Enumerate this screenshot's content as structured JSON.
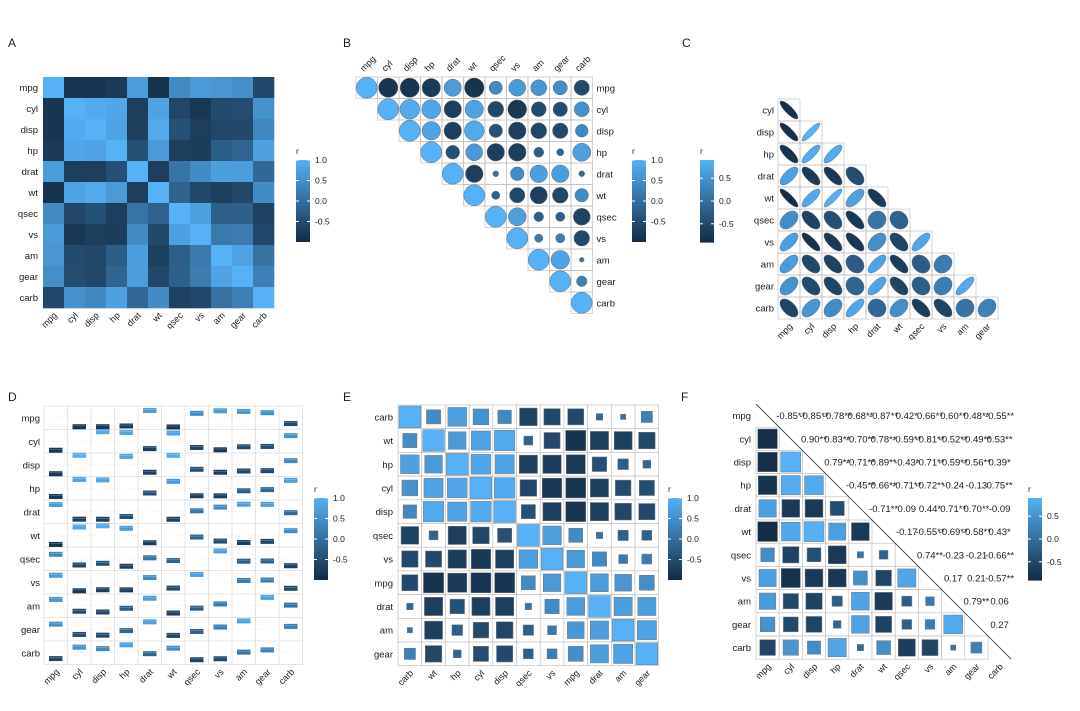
{
  "chart_data": {
    "type": "heatmap",
    "variables": [
      "mpg",
      "cyl",
      "disp",
      "hp",
      "drat",
      "wt",
      "qsec",
      "vs",
      "am",
      "gear",
      "carb"
    ],
    "matrix": [
      [
        1.0,
        -0.85,
        -0.85,
        -0.78,
        0.68,
        -0.87,
        0.42,
        0.66,
        0.6,
        0.48,
        -0.55
      ],
      [
        -0.85,
        1.0,
        0.9,
        0.83,
        -0.7,
        0.78,
        -0.59,
        -0.81,
        -0.52,
        -0.49,
        0.53
      ],
      [
        -0.85,
        0.9,
        1.0,
        0.79,
        -0.71,
        0.89,
        -0.43,
        -0.71,
        -0.59,
        -0.56,
        0.39
      ],
      [
        -0.78,
        0.83,
        0.79,
        1.0,
        -0.45,
        0.66,
        -0.71,
        -0.72,
        -0.24,
        -0.13,
        0.75
      ],
      [
        0.68,
        -0.7,
        -0.71,
        -0.45,
        1.0,
        -0.71,
        0.09,
        0.44,
        0.71,
        0.7,
        -0.09
      ],
      [
        -0.87,
        0.78,
        0.89,
        0.66,
        -0.71,
        1.0,
        -0.17,
        -0.55,
        -0.69,
        -0.58,
        0.43
      ],
      [
        0.42,
        -0.59,
        -0.43,
        -0.71,
        0.09,
        -0.17,
        1.0,
        0.74,
        -0.23,
        -0.21,
        -0.66
      ],
      [
        0.66,
        -0.81,
        -0.71,
        -0.72,
        0.44,
        -0.55,
        0.74,
        1.0,
        0.17,
        0.21,
        -0.57
      ],
      [
        0.6,
        -0.52,
        -0.59,
        -0.24,
        0.71,
        -0.69,
        -0.23,
        0.17,
        1.0,
        0.79,
        0.06
      ],
      [
        0.48,
        -0.49,
        -0.56,
        -0.13,
        0.7,
        -0.58,
        -0.21,
        0.21,
        0.79,
        1.0,
        0.27
      ],
      [
        -0.55,
        0.53,
        0.39,
        0.75,
        -0.09,
        0.43,
        -0.66,
        -0.57,
        0.06,
        0.27,
        1.0
      ]
    ],
    "hclust_order": [
      "carb",
      "wt",
      "hp",
      "cyl",
      "disp",
      "qsec",
      "vs",
      "mpg",
      "drat",
      "am",
      "gear"
    ],
    "legend_title": "r",
    "legend_ticks_full": [
      1.0,
      0.5,
      0.0,
      -0.5
    ],
    "legend_ticks_lower": [
      0.5,
      0.0,
      -0.5
    ],
    "colors": {
      "low": "#132b43",
      "high": "#56b1f7",
      "grid": "#cccccc",
      "outline": "#555555"
    },
    "panels": [
      {
        "label": "A",
        "method": "square-full"
      },
      {
        "label": "B",
        "method": "circle-upper"
      },
      {
        "label": "C",
        "method": "ellipse-lower"
      },
      {
        "label": "D",
        "method": "bars-full"
      },
      {
        "label": "E",
        "method": "square-size-hclust"
      },
      {
        "label": "F",
        "method": "mixed-numbers-squares"
      }
    ],
    "number_labels_F": {
      "mpg": [
        "-0.85**",
        "-0.85**",
        "-0.78**",
        "0.68**",
        "-0.87**",
        "0.42*",
        "0.66**",
        "0.60**",
        "0.48**",
        "-0.55**"
      ],
      "cyl": [
        "0.90**",
        "0.83**",
        "-0.70**",
        "0.78**",
        "-0.59**",
        "-0.81**",
        "-0.52**",
        "-0.49**",
        "0.53**"
      ],
      "disp": [
        "0.79**",
        "-0.71**",
        "0.89**",
        "-0.43*",
        "-0.71**",
        "-0.59**",
        "-0.56**",
        "0.39*"
      ],
      "hp": [
        "-0.45**",
        "0.66**",
        "-0.71**",
        "-0.72**",
        "-0.24",
        "-0.13",
        "0.75**"
      ],
      "drat": [
        "-0.71**",
        "0.09",
        "0.44*",
        "0.71**",
        "0.70**",
        "-0.09"
      ],
      "wt": [
        "-0.17",
        "-0.55**",
        "-0.69**",
        "-0.58**",
        "0.43*"
      ],
      "qsec": [
        "0.74**",
        "-0.23",
        "-0.21",
        "-0.66**"
      ],
      "vs": [
        "0.17",
        "0.21",
        "-0.57**"
      ],
      "am": [
        "0.79**",
        "0.06"
      ],
      "gear": [
        "0.27"
      ]
    }
  }
}
